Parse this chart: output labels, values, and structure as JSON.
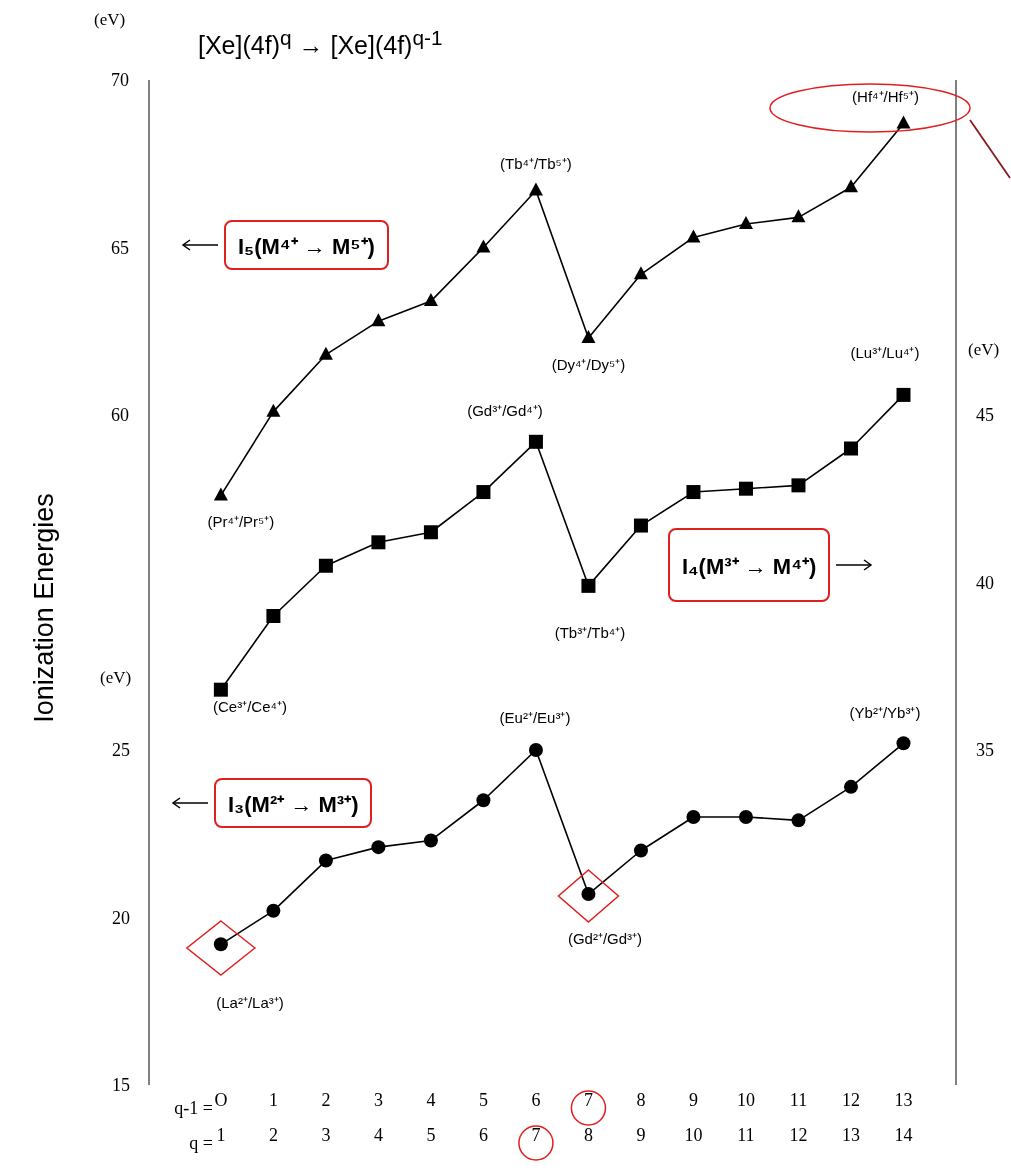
{
  "chart_data": {
    "type": "line",
    "title": "[Xe](4f)$^{q}$ → [Xe](4f)$^{q-1}$",
    "ylabel": "Ionization Energies",
    "xlabel": "q =",
    "x2label": "q-1 =",
    "x": [
      1,
      2,
      3,
      4,
      5,
      6,
      7,
      8,
      9,
      10,
      11,
      12,
      13,
      14
    ],
    "xlim": [
      -0.35,
      15
    ],
    "xticks": [
      1,
      2,
      3,
      4,
      5,
      6,
      7,
      8,
      9,
      10,
      11,
      12,
      13,
      14
    ],
    "x2lim": [
      -1.35,
      14
    ],
    "x2ticks": [
      {
        "value": 0,
        "label": "O"
      },
      1,
      2,
      3,
      4,
      5,
      6,
      7,
      8,
      9,
      10,
      11,
      12,
      13
    ],
    "ylim": [
      40,
      70
    ],
    "yticks": [
      60,
      65,
      70
    ],
    "y2lim": [
      25,
      55
    ],
    "y2ticks": [
      35,
      40,
      45
    ],
    "y3lim": [
      15,
      45
    ],
    "y3ticks": [
      15,
      20,
      25
    ],
    "series": [
      {
        "name": "I₅(M⁴⁺ → M⁵⁺)",
        "color": "#000000",
        "marker": "triangle",
        "axis": "y",
        "values": [
          57.6,
          60.1,
          61.8,
          62.8,
          63.4,
          65.0,
          66.7,
          62.3,
          64.2,
          65.3,
          65.7,
          65.9,
          66.8,
          68.7
        ]
      },
      {
        "name": "I₄(M³⁺ → M⁴⁺)",
        "color": "#000000",
        "marker": "square",
        "axis": "y2",
        "values": [
          36.8,
          39.0,
          40.5,
          41.2,
          41.5,
          42.7,
          44.2,
          39.9,
          41.7,
          42.7,
          42.8,
          42.9,
          44.0,
          45.6
        ]
      },
      {
        "name": "I₃(M²⁺ → M³⁺)",
        "color": "#000000",
        "marker": "circle",
        "axis": "y3",
        "values": [
          19.2,
          20.2,
          21.7,
          22.1,
          22.3,
          23.5,
          25.0,
          20.7,
          22.0,
          23.0,
          23.0,
          22.9,
          23.9,
          25.2
        ]
      }
    ],
    "annotations": [
      "(eV)",
      "(eV)",
      "(eV)",
      {
        "text": "(Pr⁴⁺/Pr⁵⁺)",
        "x": 1,
        "y": 57.6
      },
      {
        "text": "(Tb⁴⁺/Tb⁵⁺)",
        "x": 7,
        "y": 66.7
      },
      {
        "text": "(Dy⁴⁺/Dy⁵⁺)",
        "x": 8,
        "y": 62.3
      },
      {
        "text": "(Hf⁴⁺/Hf⁵⁺)",
        "x": 14,
        "y": 68.7
      },
      "(Ce³⁺/Ce⁴⁺)",
      "(Gd³⁺/Gd⁴⁺)",
      "(Tb³⁺/Tb⁴⁺)",
      "(Lu³⁺/Lu⁴⁺)",
      "(La²⁺/La³⁺)",
      "(Eu²⁺/Eu³⁺)",
      "(Gd²⁺/Gd³⁺)",
      "(Yb²⁺/Yb³⁺)"
    ],
    "legend": "left",
    "grid": false,
    "line_style": "solid"
  }
}
